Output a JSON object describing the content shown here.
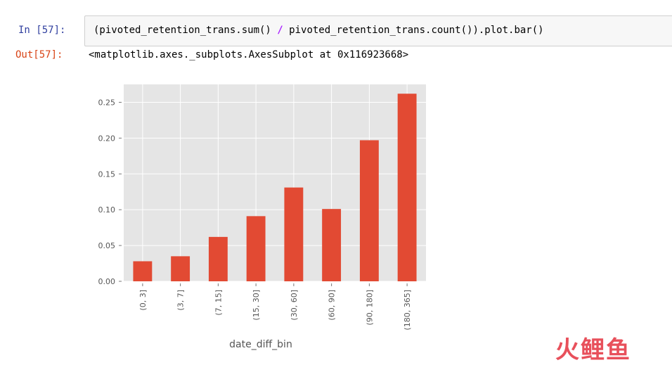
{
  "cell": {
    "in_prompt": "In [57]:",
    "code_before": "(pivoted_retention_trans.sum() ",
    "code_op": "/",
    "code_after": " pivoted_retention_trans.count()).plot.bar()",
    "out_prompt": "Out[57]:",
    "out_text": "<matplotlib.axes._subplots.AxesSubplot at 0x116923668>"
  },
  "chart_data": {
    "type": "bar",
    "categories": [
      "(0, 3]",
      "(3, 7]",
      "(7, 15]",
      "(15, 30]",
      "(30, 60]",
      "(60, 90]",
      "(90, 180]",
      "(180, 365]"
    ],
    "values": [
      0.028,
      0.035,
      0.062,
      0.091,
      0.131,
      0.101,
      0.197,
      0.262
    ],
    "xlabel": "date_diff_bin",
    "ylabel": "",
    "ylim": [
      0,
      0.275
    ],
    "yticks": [
      "0.00",
      "0.05",
      "0.10",
      "0.15",
      "0.20",
      "0.25"
    ],
    "grid": true,
    "bar_color": "#e24a33",
    "background_color": "#e5e5e5"
  },
  "watermark": {
    "part1": "火",
    "part2": "鲤鱼"
  }
}
